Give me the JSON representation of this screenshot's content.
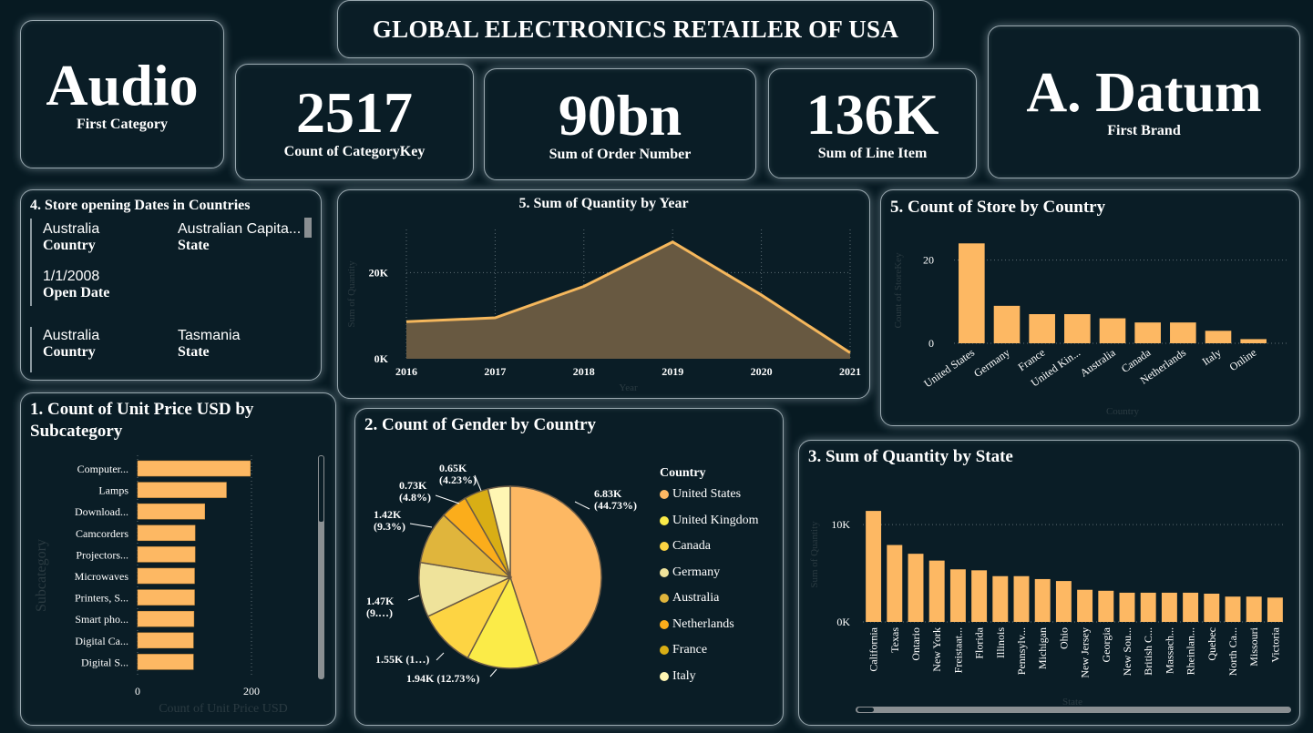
{
  "header": {
    "title": "GLOBAL ELECTRONICS RETAILER OF USA"
  },
  "kpis": {
    "first_category": {
      "value": "Audio",
      "label": "First Category"
    },
    "count_category": {
      "value": "2517",
      "label": "Count of CategoryKey"
    },
    "sum_order": {
      "value": "90bn",
      "label": "Sum of Order Number"
    },
    "sum_line": {
      "value": "136K",
      "label": "Sum of Line Item"
    },
    "first_brand": {
      "value": "A. Datum",
      "label": "First Brand"
    }
  },
  "store_dates": {
    "title": "4. Store opening Dates in Countries",
    "country_label": "Country",
    "state_label": "State",
    "open_date_label": "Open Date",
    "row1": {
      "country": "Australia",
      "state": "Australian Capita...",
      "date": "1/1/2008"
    },
    "row2": {
      "country": "Australia",
      "state": "Tasmania"
    }
  },
  "chart_data": [
    {
      "id": "quantity_by_year",
      "type": "area",
      "title": "5. Sum of Quantity by Year",
      "xlabel": "Year",
      "ylabel": "Sum of Quantity",
      "x": [
        2016,
        2017,
        2018,
        2019,
        2020,
        2021
      ],
      "y_ticks": [
        "0K",
        "20K"
      ],
      "values": [
        8600,
        9500,
        16800,
        27100,
        14800,
        1400
      ],
      "ylim": [
        0,
        30000
      ],
      "color": "#f5b75c",
      "fill": "#685941"
    },
    {
      "id": "store_by_country",
      "type": "bar",
      "title": "5. Count of Store by Country",
      "xlabel": "Country",
      "ylabel": "Count of StoreKey",
      "categories": [
        "United States",
        "Germany",
        "France",
        "United Kin...",
        "Australia",
        "Canada",
        "Netherlands",
        "Italy",
        "Online"
      ],
      "values": [
        24,
        9,
        7,
        7,
        6,
        5,
        5,
        3,
        1
      ],
      "y_ticks": [
        "0",
        "20"
      ],
      "ylim": [
        0,
        28
      ],
      "color": "#fdb863"
    },
    {
      "id": "unit_price_by_subcategory",
      "type": "bar",
      "orientation": "horizontal",
      "title": "1. Count of Unit Price USD by Subcategory",
      "xlabel": "Count of Unit Price USD",
      "ylabel": "Subcategory",
      "categories": [
        "Computer...",
        "Lamps",
        "Download...",
        "Camcorders",
        "Projectors...",
        "Microwaves",
        "Printers, S...",
        "Smart pho...",
        "Digital Ca...",
        "Digital S..."
      ],
      "values": [
        198,
        156,
        118,
        101,
        101,
        100,
        100,
        99,
        98,
        98
      ],
      "x_ticks": [
        "0",
        "200"
      ],
      "xlim": [
        0,
        250
      ],
      "color": "#fdb863"
    },
    {
      "id": "gender_by_country",
      "type": "pie",
      "title": "2. Count of Gender by Country",
      "legend_title": "Country",
      "legend_position": "right",
      "categories": [
        "United States",
        "United Kingdom",
        "Canada",
        "Germany",
        "Australia",
        "Netherlands",
        "France",
        "Italy"
      ],
      "values": [
        6.83,
        1.94,
        1.55,
        1.47,
        1.42,
        0.73,
        0.65,
        0.6
      ],
      "labels": [
        "6.83K\n(44.73%)",
        "1.94K (12.73%)",
        "1.55K (1…)",
        "1.47K\n(9.…)",
        "1.42K\n(9.3%)",
        "0.73K\n(4.8%)",
        "0.65K\n(4.23%)",
        ""
      ],
      "colors": [
        "#fdb863",
        "#fbeb48",
        "#fdd443",
        "#efe39b",
        "#e0b53c",
        "#fbad1b",
        "#d9ae15",
        "#fff6b3"
      ]
    },
    {
      "id": "quantity_by_state",
      "type": "bar",
      "title": "3. Sum of Quantity by State",
      "xlabel": "State",
      "ylabel": "Sum of Quantity",
      "categories": [
        "California",
        "Texas",
        "Ontario",
        "New York",
        "Freistaat...",
        "Florida",
        "Illinois",
        "Pennsylv...",
        "Michigan",
        "Ohio",
        "New Jersey",
        "Georgia",
        "New Sou...",
        "British C...",
        "Massach...",
        "Rheinlan...",
        "Quebec",
        "North Ca...",
        "Missouri",
        "Victoria"
      ],
      "values": [
        11400,
        7900,
        7000,
        6300,
        5400,
        5300,
        4700,
        4700,
        4400,
        4200,
        3300,
        3200,
        3000,
        3000,
        3000,
        3000,
        2900,
        2600,
        2600,
        2500
      ],
      "y_ticks": [
        "0K",
        "10K"
      ],
      "ylim": [
        0,
        13000
      ],
      "color": "#fdb863"
    }
  ]
}
